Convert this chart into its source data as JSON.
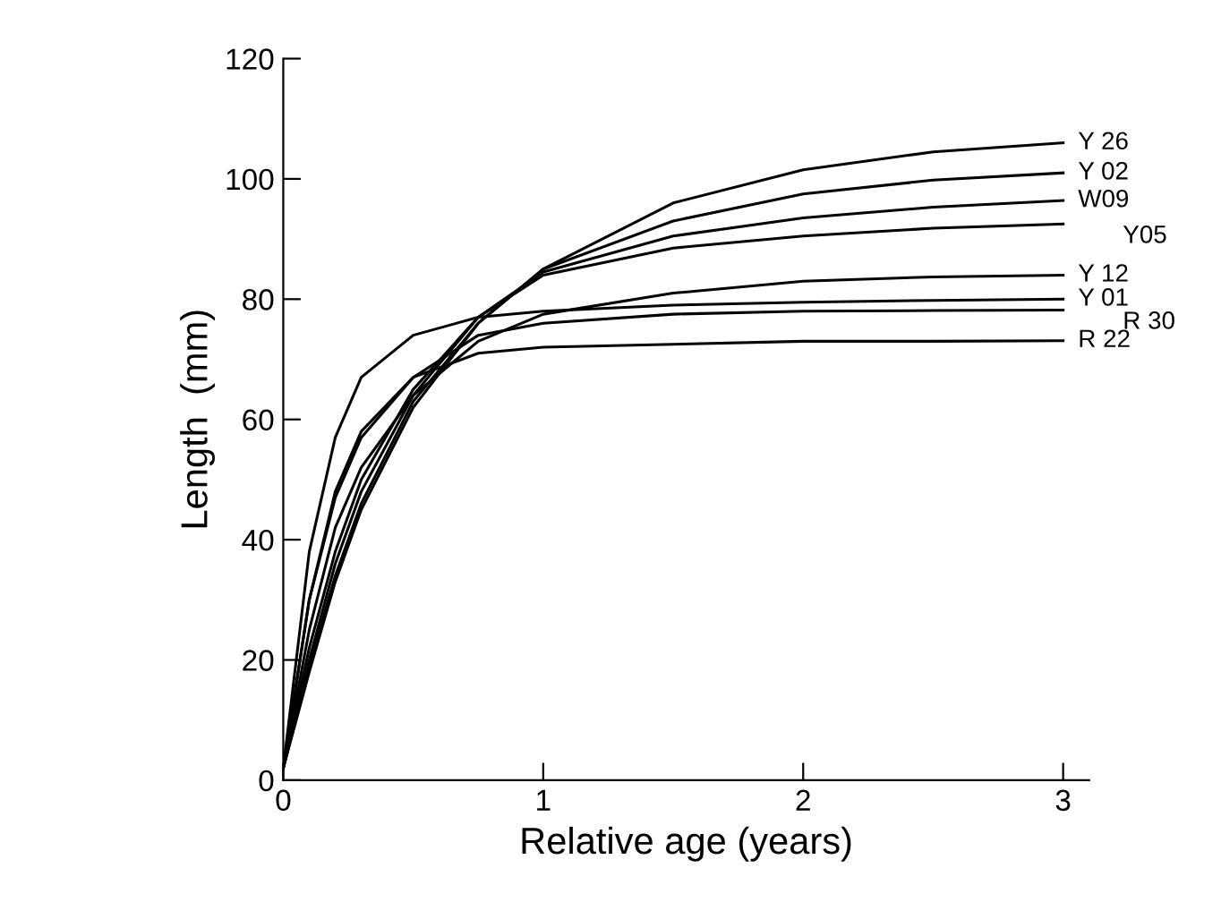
{
  "chart_data": {
    "type": "line",
    "xlabel": "Relative age (years)",
    "ylabel": "Length  (mm)",
    "x": [
      0,
      0.1,
      0.2,
      0.3,
      0.5,
      0.75,
      1,
      1.5,
      2,
      2.5,
      3
    ],
    "series": [
      {
        "name": "Y 26",
        "color": "#000000",
        "values": [
          2,
          18,
          33,
          45,
          62,
          76,
          85,
          96,
          101.5,
          104.5,
          106
        ]
      },
      {
        "name": "Y 02",
        "color": "#000000",
        "values": [
          2,
          19,
          34,
          46,
          63,
          76,
          85,
          93,
          97.5,
          99.8,
          101
        ]
      },
      {
        "name": "W09",
        "color": "#000000",
        "values": [
          2,
          20,
          36,
          48,
          64,
          77,
          84.5,
          90.5,
          93.5,
          95.3,
          96.4
        ]
      },
      {
        "name": "Y05",
        "color": "#000000",
        "values": [
          2,
          22,
          38,
          50,
          65,
          77,
          84,
          88.5,
          90.5,
          91.8,
          92.5
        ]
      },
      {
        "name": "Y 12",
        "color": "#000000",
        "values": [
          2,
          25,
          42,
          52,
          64,
          73,
          77.5,
          81,
          83,
          83.7,
          84
        ]
      },
      {
        "name": "Y 01",
        "color": "#000000",
        "values": [
          2,
          38,
          57,
          67,
          74,
          77,
          78,
          79,
          79.5,
          79.8,
          80
        ]
      },
      {
        "name": "R 30",
        "color": "#000000",
        "values": [
          2,
          30,
          47,
          57,
          67,
          74,
          76,
          77.5,
          78,
          78.1,
          78.2
        ]
      },
      {
        "name": "R 22",
        "color": "#000000",
        "values": [
          2,
          30,
          48,
          58,
          67,
          71,
          72,
          72.5,
          73,
          73,
          73.1
        ]
      }
    ],
    "xlim": [
      0,
      3.1
    ],
    "ylim": [
      0,
      120
    ],
    "xticks": [
      0,
      1,
      2,
      3
    ],
    "yticks": [
      0,
      20,
      40,
      60,
      80,
      100,
      120
    ],
    "grid": false,
    "legend": false,
    "marker": "none",
    "line_style": "solid"
  }
}
